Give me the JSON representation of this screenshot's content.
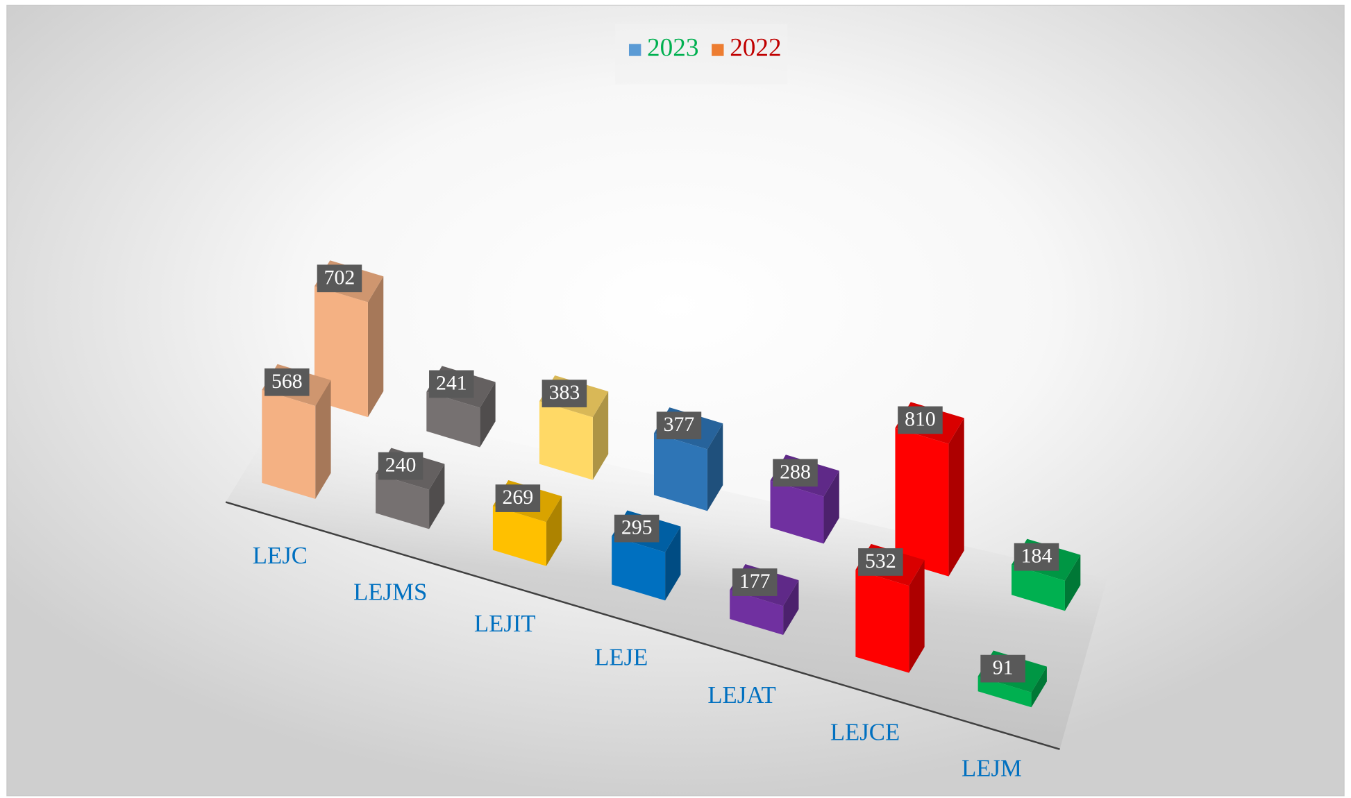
{
  "chart_data": {
    "type": "bar",
    "three_d": true,
    "categories": [
      "LEJC",
      "LEJMS",
      "LEJIT",
      "LEJE",
      "LEJAT",
      "LEJCE",
      "LEJM"
    ],
    "category_label_color": "#0070C0",
    "series": [
      {
        "name": "2023",
        "color": "#5B9BD5",
        "legend_text_color": "#00B050",
        "values": [
          568,
          240,
          269,
          295,
          177,
          532,
          91
        ],
        "point_colors": [
          "#F4B183",
          "#767171",
          "#FFC000",
          "#0070C0",
          "#7030A0",
          "#FF0000",
          "#00B050"
        ]
      },
      {
        "name": "2022",
        "color": "#ED7D31",
        "legend_text_color": "#C00000",
        "values": [
          702,
          241,
          383,
          377,
          288,
          810,
          184
        ],
        "point_colors": [
          "#F4B183",
          "#767171",
          "#FFD966",
          "#2E75B6",
          "#7030A0",
          "#FF0000",
          "#00B050"
        ]
      }
    ],
    "legend": "top"
  }
}
